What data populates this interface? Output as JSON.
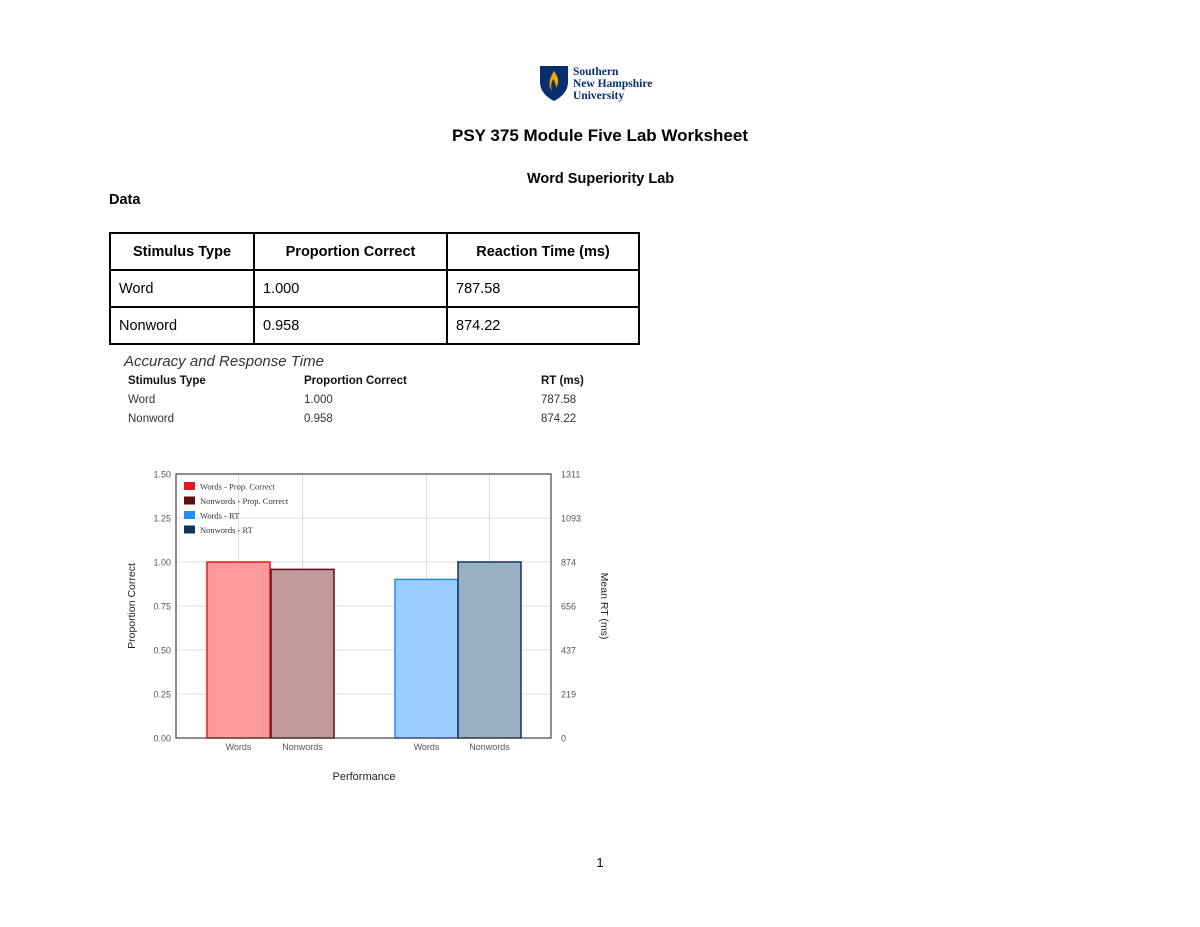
{
  "header": {
    "logo_lines": [
      "Southern",
      "New Hampshire",
      "University"
    ],
    "title": "PSY 375 Module Five Lab Worksheet",
    "subtitle": "Word Superiority Lab",
    "section_label": "Data",
    "brand_colors": {
      "navy": "#0a2d6e",
      "flame": "#f2a900"
    }
  },
  "data_table": {
    "headers": [
      "Stimulus Type",
      "Proportion Correct",
      "Reaction Time (ms)"
    ],
    "rows": [
      [
        "Word",
        "1.000",
        "787.58"
      ],
      [
        "Nonword",
        "0.958",
        "874.22"
      ]
    ]
  },
  "summary": {
    "title": "Accuracy and Response Time",
    "headers": [
      "Stimulus Type",
      "Proportion Correct",
      "RT (ms)"
    ],
    "rows": [
      [
        "Word",
        "1.000",
        "787.58"
      ],
      [
        "Nonword",
        "0.958",
        "874.22"
      ]
    ]
  },
  "chart_data": {
    "type": "bar",
    "xlabel": "Performance",
    "ylabel": "Proportion Correct",
    "ylabel_right": "Mean RT (ms)",
    "ylim": [
      0,
      1.5
    ],
    "ylim_right": [
      0,
      1311
    ],
    "yticks": [
      "0.00",
      "0.25",
      "0.50",
      "0.75",
      "1.00",
      "1.25",
      "1.50"
    ],
    "yticks_right": [
      "0",
      "219",
      "437",
      "656",
      "874",
      "1093",
      "1311"
    ],
    "grid": true,
    "legend_position": "top-left",
    "categories": [
      "Words",
      "Nonwords",
      "Words",
      "Nonwords"
    ],
    "series": [
      {
        "name": "Words - Prop. Correct",
        "axis": "left",
        "slot": 0,
        "value": 1.0,
        "fill": "#ff9a9a",
        "stroke": "#e8191f",
        "legend_color": "#e8191f"
      },
      {
        "name": "Nonwords - Prop. Correct",
        "axis": "left",
        "slot": 1,
        "value": 0.958,
        "fill": "#c09a9a",
        "stroke": "#5e0f12",
        "legend_color": "#5e0f12"
      },
      {
        "name": "Words - RT",
        "axis": "right",
        "slot": 2,
        "value": 787.58,
        "fill": "#99ccff",
        "stroke": "#2a8be8",
        "legend_color": "#1e90ff"
      },
      {
        "name": "Nonwords - RT",
        "axis": "right",
        "slot": 3,
        "value": 874.22,
        "fill": "#9aaec4",
        "stroke": "#0f3460",
        "legend_color": "#0f3460"
      }
    ]
  },
  "page_number": "1"
}
